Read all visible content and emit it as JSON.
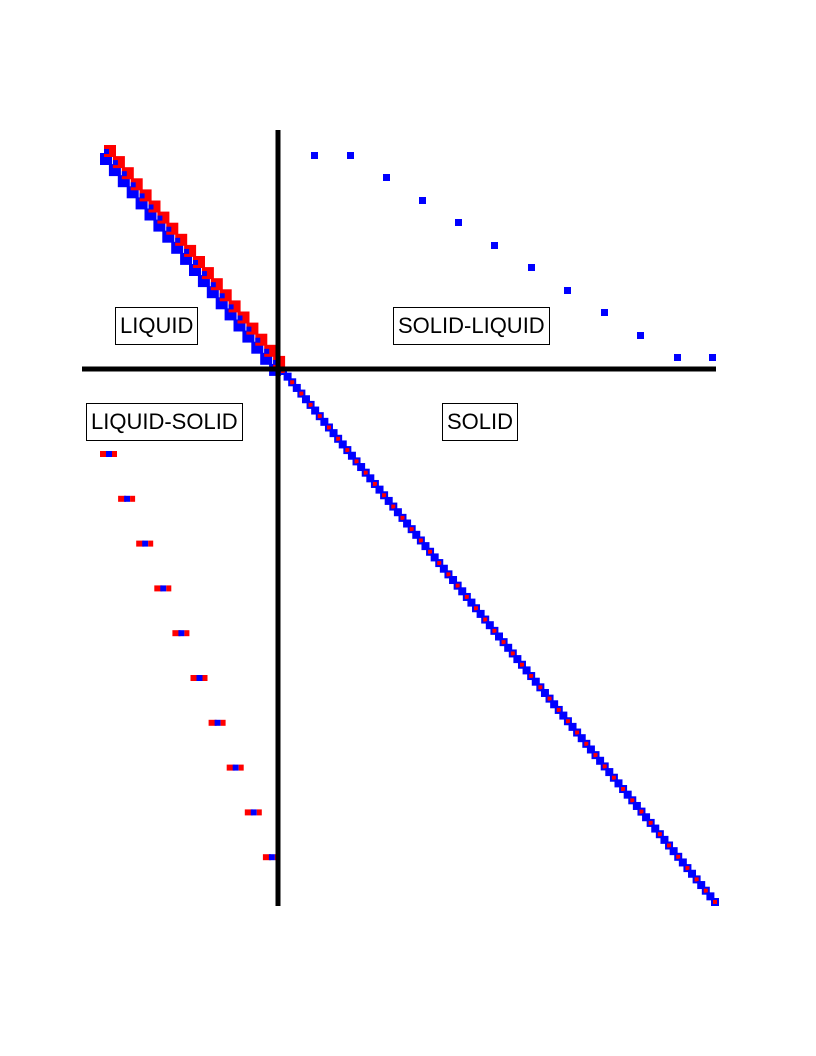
{
  "regions": {
    "liquid": "LIQUID",
    "solid_liquid": "SOLID-LIQUID",
    "liquid_solid": "LIQUID-SOLID",
    "solid": "SOLID"
  },
  "colors": {
    "axis": "#000000",
    "red": "#ff0000",
    "blue": "#0000ff",
    "background": "#ffffff",
    "label_border": "#000000"
  }
}
